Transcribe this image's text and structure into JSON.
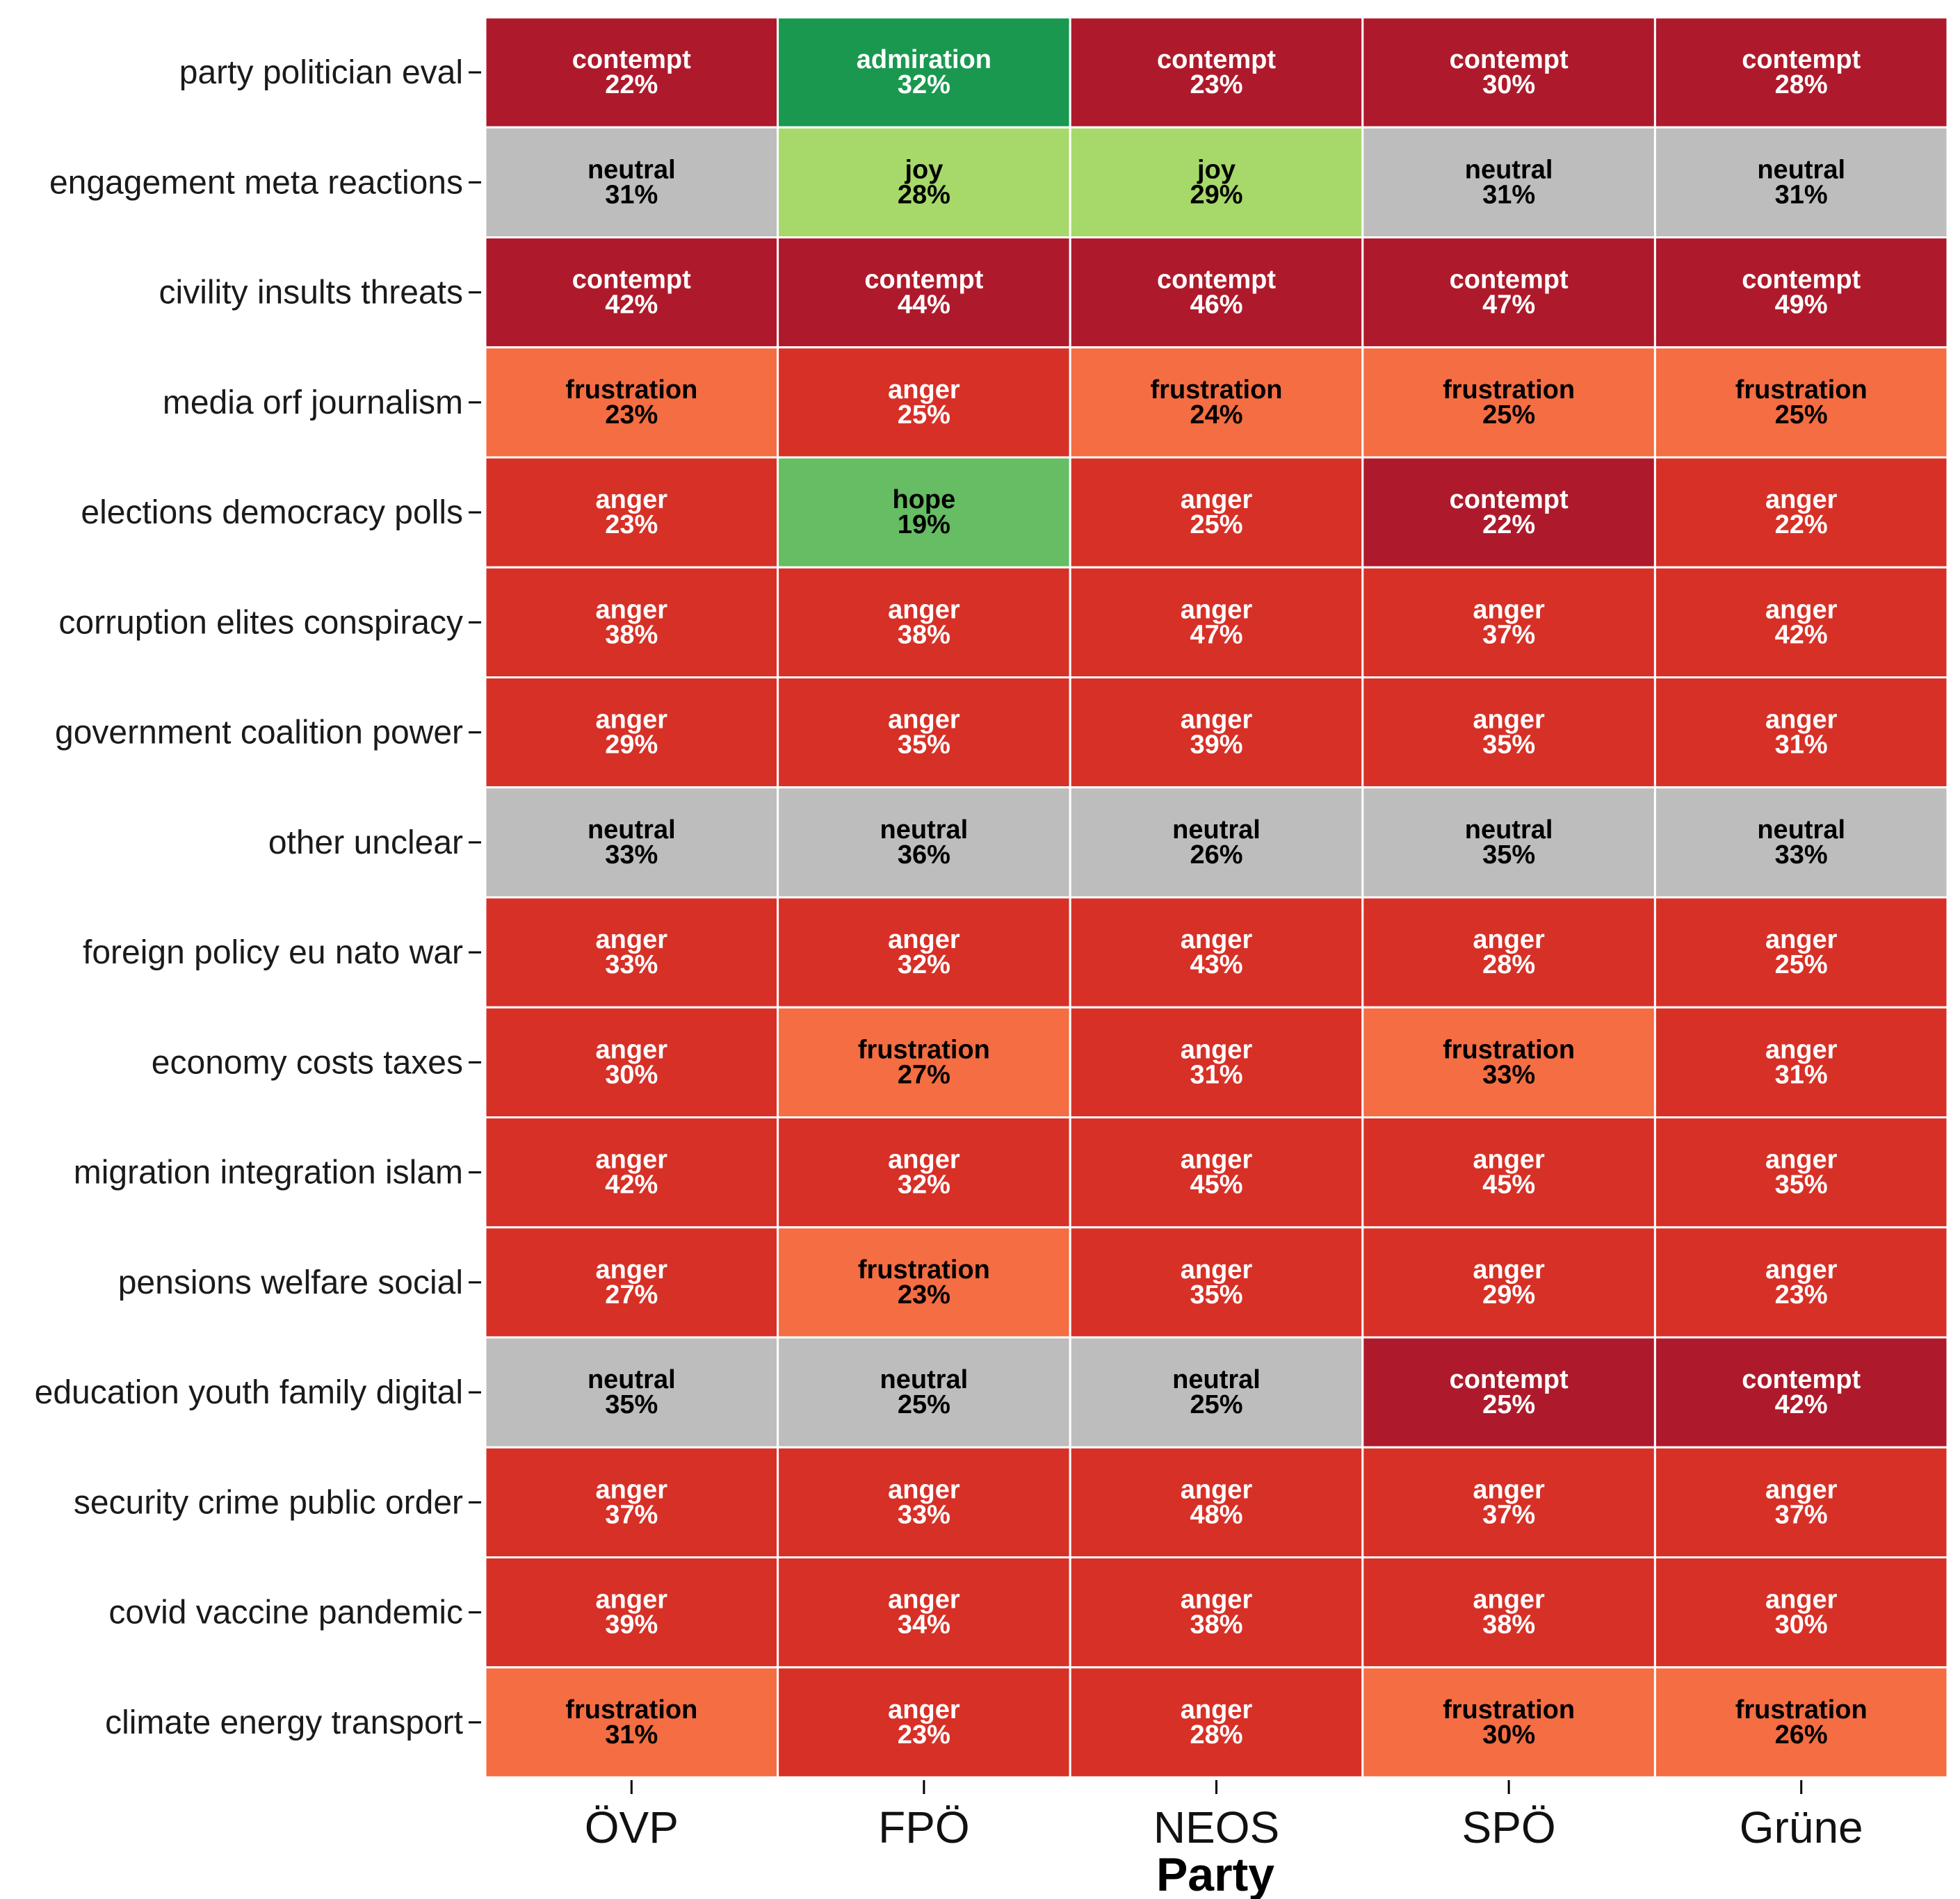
{
  "chart_data": {
    "type": "heatmap",
    "xlabel": "Party",
    "ylabel": "",
    "columns": [
      "ÖVP",
      "FPÖ",
      "NEOS",
      "SPÖ",
      "Grüne"
    ],
    "rows": [
      "party politician eval",
      "engagement meta reactions",
      "civility insults threats",
      "media orf journalism",
      "elections democracy polls",
      "corruption elites conspiracy",
      "government coalition power",
      "other unclear",
      "foreign policy eu nato war",
      "economy costs taxes",
      "migration integration islam",
      "pensions welfare social",
      "education youth family digital",
      "security crime public order",
      "covid vaccine pandemic",
      "climate energy transport"
    ],
    "cells": [
      [
        [
          "contempt",
          "22%"
        ],
        [
          "admiration",
          "32%"
        ],
        [
          "contempt",
          "23%"
        ],
        [
          "contempt",
          "30%"
        ],
        [
          "contempt",
          "28%"
        ]
      ],
      [
        [
          "neutral",
          "31%"
        ],
        [
          "joy",
          "28%"
        ],
        [
          "joy",
          "29%"
        ],
        [
          "neutral",
          "31%"
        ],
        [
          "neutral",
          "31%"
        ]
      ],
      [
        [
          "contempt",
          "42%"
        ],
        [
          "contempt",
          "44%"
        ],
        [
          "contempt",
          "46%"
        ],
        [
          "contempt",
          "47%"
        ],
        [
          "contempt",
          "49%"
        ]
      ],
      [
        [
          "frustration",
          "23%"
        ],
        [
          "anger",
          "25%"
        ],
        [
          "frustration",
          "24%"
        ],
        [
          "frustration",
          "25%"
        ],
        [
          "frustration",
          "25%"
        ]
      ],
      [
        [
          "anger",
          "23%"
        ],
        [
          "hope",
          "19%"
        ],
        [
          "anger",
          "25%"
        ],
        [
          "contempt",
          "22%"
        ],
        [
          "anger",
          "22%"
        ]
      ],
      [
        [
          "anger",
          "38%"
        ],
        [
          "anger",
          "38%"
        ],
        [
          "anger",
          "47%"
        ],
        [
          "anger",
          "37%"
        ],
        [
          "anger",
          "42%"
        ]
      ],
      [
        [
          "anger",
          "29%"
        ],
        [
          "anger",
          "35%"
        ],
        [
          "anger",
          "39%"
        ],
        [
          "anger",
          "35%"
        ],
        [
          "anger",
          "31%"
        ]
      ],
      [
        [
          "neutral",
          "33%"
        ],
        [
          "neutral",
          "36%"
        ],
        [
          "neutral",
          "26%"
        ],
        [
          "neutral",
          "35%"
        ],
        [
          "neutral",
          "33%"
        ]
      ],
      [
        [
          "anger",
          "33%"
        ],
        [
          "anger",
          "32%"
        ],
        [
          "anger",
          "43%"
        ],
        [
          "anger",
          "28%"
        ],
        [
          "anger",
          "25%"
        ]
      ],
      [
        [
          "anger",
          "30%"
        ],
        [
          "frustration",
          "27%"
        ],
        [
          "anger",
          "31%"
        ],
        [
          "frustration",
          "33%"
        ],
        [
          "anger",
          "31%"
        ]
      ],
      [
        [
          "anger",
          "42%"
        ],
        [
          "anger",
          "32%"
        ],
        [
          "anger",
          "45%"
        ],
        [
          "anger",
          "45%"
        ],
        [
          "anger",
          "35%"
        ]
      ],
      [
        [
          "anger",
          "27%"
        ],
        [
          "frustration",
          "23%"
        ],
        [
          "anger",
          "35%"
        ],
        [
          "anger",
          "29%"
        ],
        [
          "anger",
          "23%"
        ]
      ],
      [
        [
          "neutral",
          "35%"
        ],
        [
          "neutral",
          "25%"
        ],
        [
          "neutral",
          "25%"
        ],
        [
          "contempt",
          "25%"
        ],
        [
          "contempt",
          "42%"
        ]
      ],
      [
        [
          "anger",
          "37%"
        ],
        [
          "anger",
          "33%"
        ],
        [
          "anger",
          "48%"
        ],
        [
          "anger",
          "37%"
        ],
        [
          "anger",
          "37%"
        ]
      ],
      [
        [
          "anger",
          "39%"
        ],
        [
          "anger",
          "34%"
        ],
        [
          "anger",
          "38%"
        ],
        [
          "anger",
          "38%"
        ],
        [
          "anger",
          "30%"
        ]
      ],
      [
        [
          "frustration",
          "31%"
        ],
        [
          "anger",
          "23%"
        ],
        [
          "anger",
          "28%"
        ],
        [
          "frustration",
          "30%"
        ],
        [
          "frustration",
          "26%"
        ]
      ]
    ],
    "emotion_colors": {
      "contempt": "#ae1a2c",
      "admiration": "#1a9850",
      "neutral": "#bdbdbd",
      "joy": "#a6d96a",
      "frustration": "#f46d43",
      "anger": "#d73027",
      "hope": "#66bd63"
    },
    "text_colors": {
      "contempt": "#ffffff",
      "admiration": "#ffffff",
      "anger": "#ffffff",
      "neutral": "#000000",
      "joy": "#000000",
      "frustration": "#000000",
      "hope": "#000000"
    },
    "grid": false,
    "legend": "none"
  }
}
